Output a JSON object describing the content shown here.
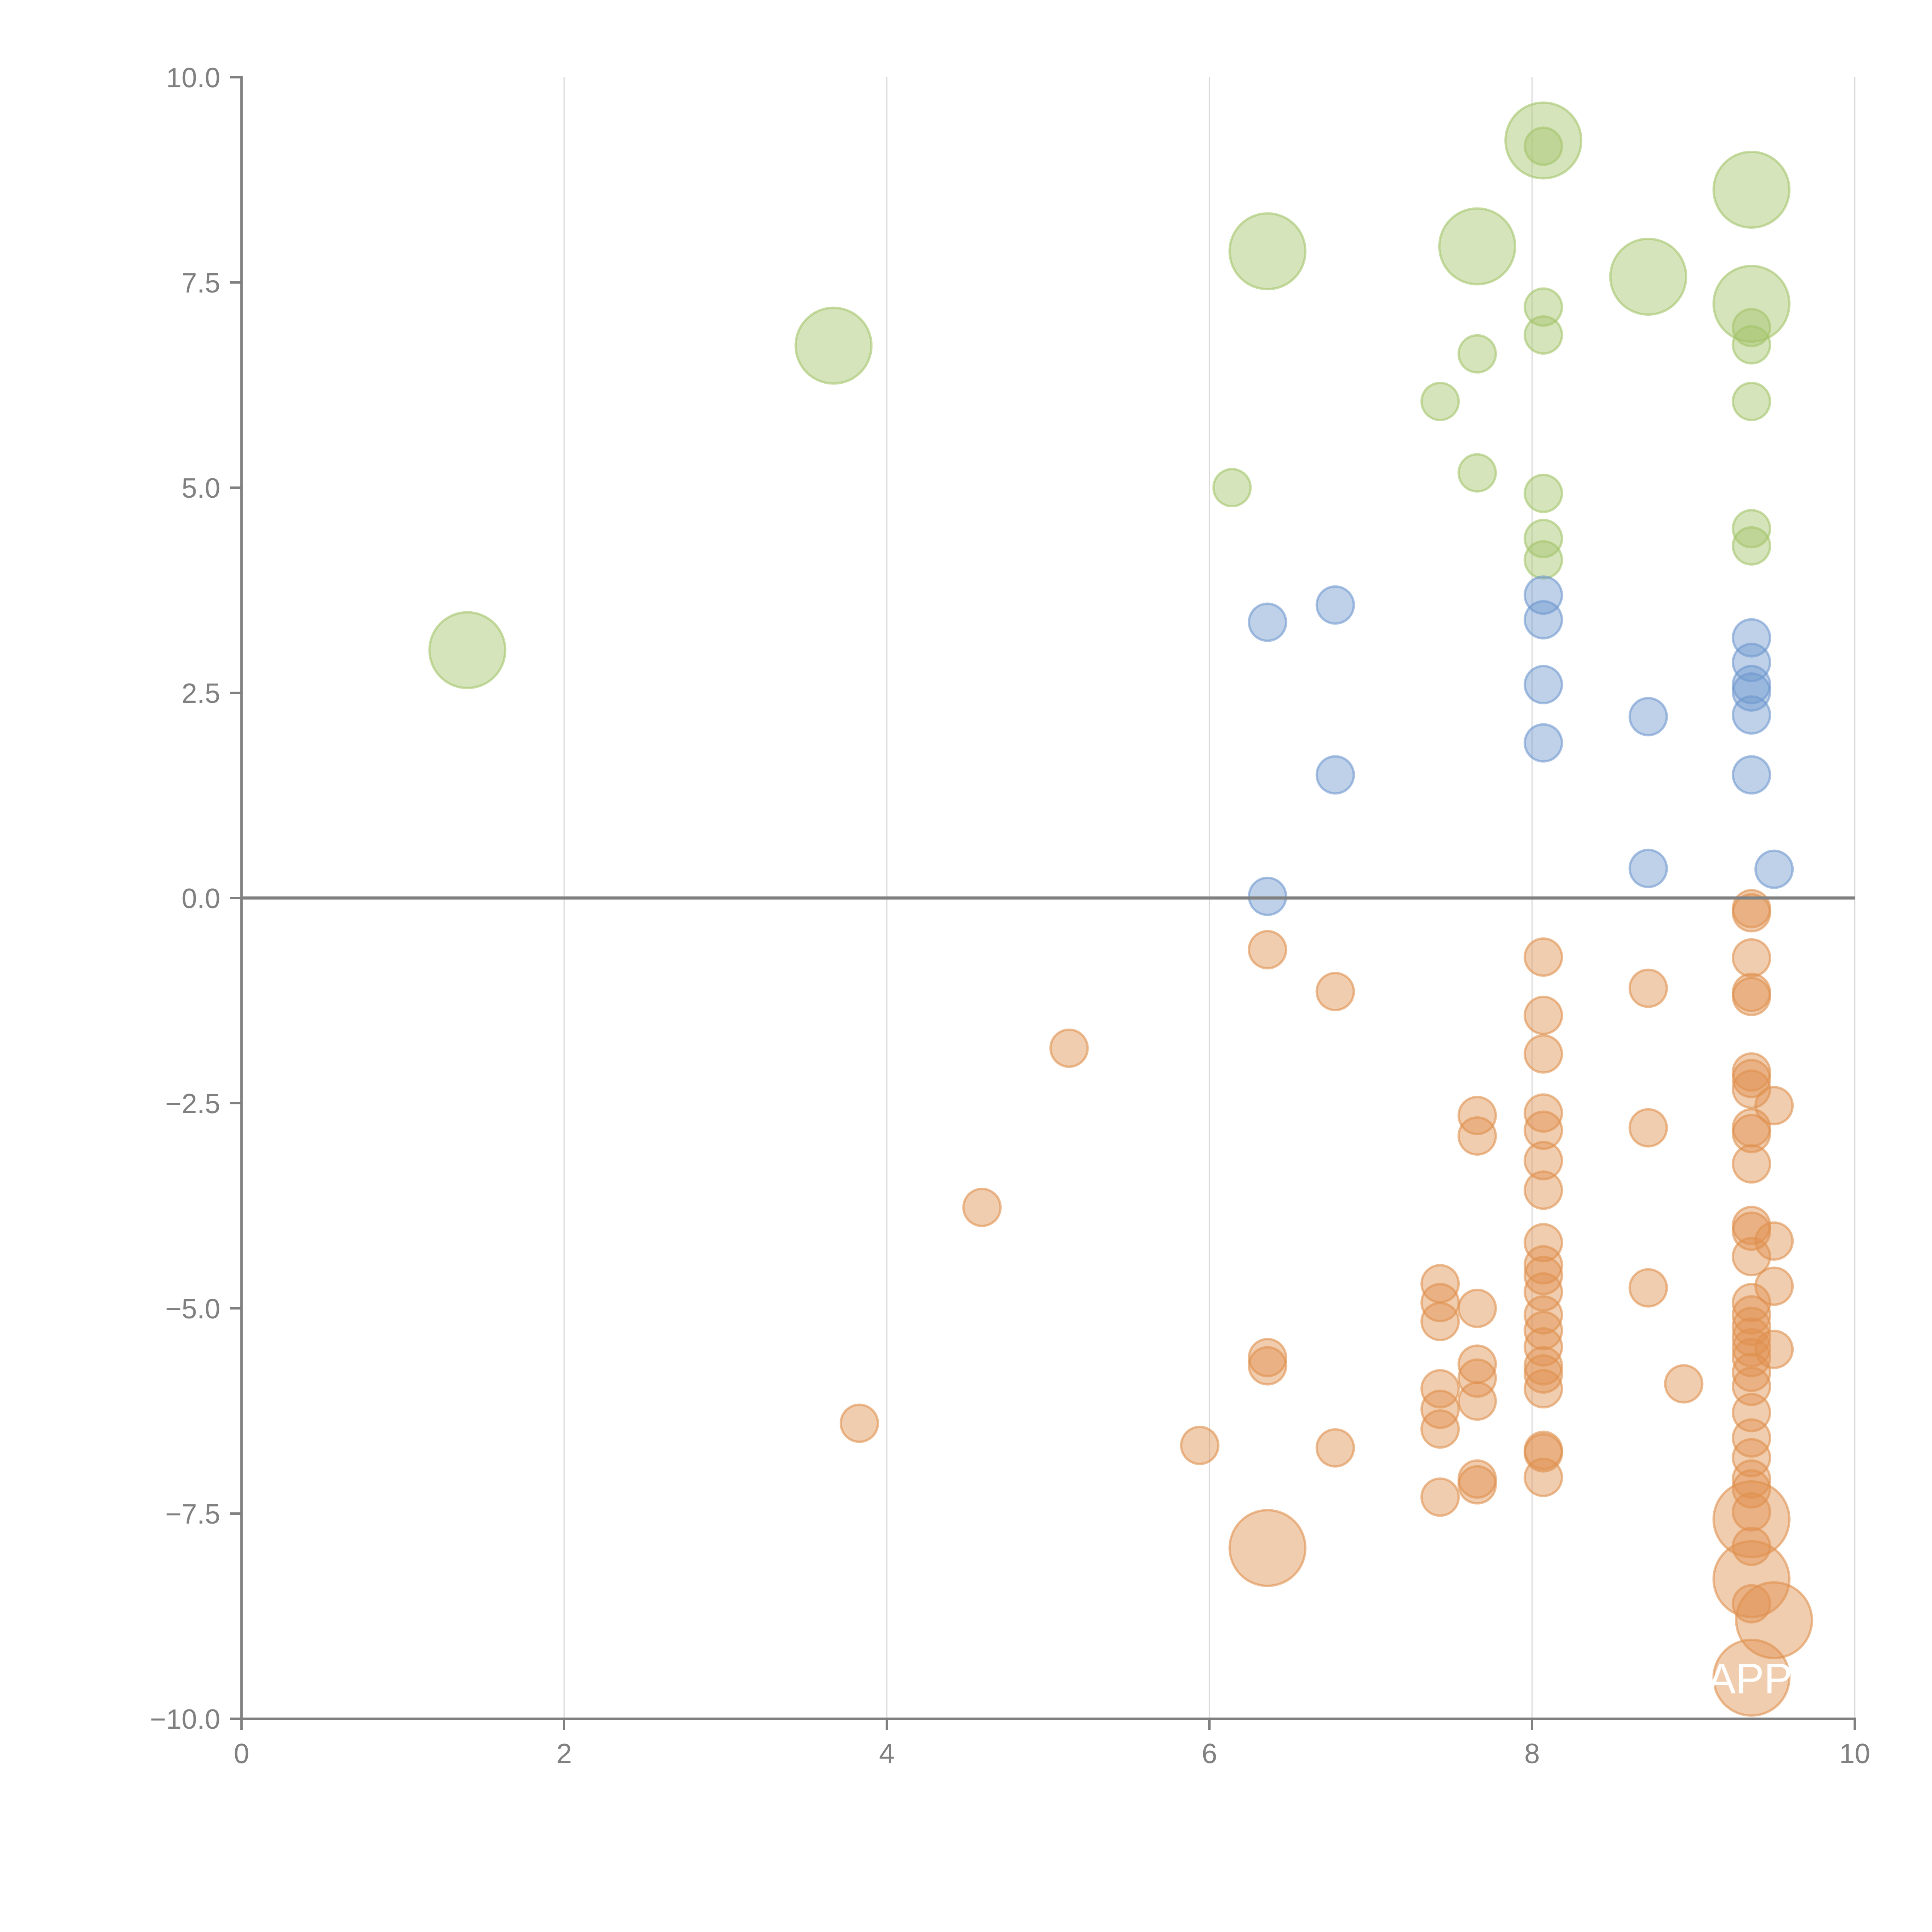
{
  "chart_data": {
    "type": "scatter",
    "title": "",
    "xlabel": "",
    "ylabel": "",
    "xlim": [
      0,
      10
    ],
    "ylim": [
      -10,
      10
    ],
    "x_ticks": [
      "0",
      "2",
      "4",
      "6",
      "8",
      "10"
    ],
    "x_tick_values": [
      0,
      2,
      4,
      6,
      8,
      10
    ],
    "y_ticks": [
      "10.0",
      "7.5",
      "5.0",
      "2.5",
      "0.0",
      "−2.5",
      "−5.0",
      "−7.5",
      "−10.0"
    ],
    "y_tick_values": [
      10,
      7.5,
      5,
      2.5,
      0,
      -2.5,
      -5,
      -7.5,
      -10
    ],
    "grid": "vertical",
    "zero_line": true,
    "annotations": [
      "APP"
    ],
    "series": [
      {
        "name": "green",
        "color": "#a4c46a",
        "points": [
          {
            "x": 1.4,
            "y": 3.02,
            "size": "large"
          },
          {
            "x": 3.67,
            "y": 6.73,
            "size": "large"
          },
          {
            "x": 6.36,
            "y": 7.88,
            "size": "large"
          },
          {
            "x": 7.66,
            "y": 7.94,
            "size": "large"
          },
          {
            "x": 8.07,
            "y": 9.23,
            "size": "large"
          },
          {
            "x": 8.07,
            "y": 9.16,
            "size": "small"
          },
          {
            "x": 8.72,
            "y": 7.57,
            "size": "large"
          },
          {
            "x": 9.36,
            "y": 8.63,
            "size": "large"
          },
          {
            "x": 9.36,
            "y": 7.24,
            "size": "large"
          },
          {
            "x": 9.36,
            "y": 6.95,
            "size": "small"
          },
          {
            "x": 9.36,
            "y": 6.74,
            "size": "small"
          },
          {
            "x": 9.36,
            "y": 6.05,
            "size": "small"
          },
          {
            "x": 9.36,
            "y": 4.5,
            "size": "small"
          },
          {
            "x": 9.36,
            "y": 4.29,
            "size": "small"
          },
          {
            "x": 8.07,
            "y": 7.2,
            "size": "small"
          },
          {
            "x": 8.07,
            "y": 6.86,
            "size": "small"
          },
          {
            "x": 8.07,
            "y": 4.93,
            "size": "small"
          },
          {
            "x": 8.07,
            "y": 4.38,
            "size": "small"
          },
          {
            "x": 8.07,
            "y": 4.12,
            "size": "small"
          },
          {
            "x": 7.66,
            "y": 6.63,
            "size": "small"
          },
          {
            "x": 7.66,
            "y": 5.18,
            "size": "small"
          },
          {
            "x": 7.43,
            "y": 6.05,
            "size": "small"
          },
          {
            "x": 6.14,
            "y": 5.0,
            "size": "small"
          }
        ]
      },
      {
        "name": "blue",
        "color": "#6f98cf",
        "points": [
          {
            "x": 6.36,
            "y": 3.36
          },
          {
            "x": 6.78,
            "y": 3.57
          },
          {
            "x": 6.78,
            "y": 1.5
          },
          {
            "x": 6.36,
            "y": 0.02
          },
          {
            "x": 8.07,
            "y": 3.69
          },
          {
            "x": 8.07,
            "y": 3.39
          },
          {
            "x": 8.07,
            "y": 2.6
          },
          {
            "x": 8.07,
            "y": 1.89
          },
          {
            "x": 8.72,
            "y": 2.21
          },
          {
            "x": 8.72,
            "y": 0.36
          },
          {
            "x": 9.36,
            "y": 3.17
          },
          {
            "x": 9.36,
            "y": 2.87
          },
          {
            "x": 9.36,
            "y": 2.6
          },
          {
            "x": 9.36,
            "y": 2.51
          },
          {
            "x": 9.36,
            "y": 2.23
          },
          {
            "x": 9.36,
            "y": 1.5
          },
          {
            "x": 9.5,
            "y": 0.35
          }
        ]
      },
      {
        "name": "orange",
        "color": "#e0914f",
        "points": [
          {
            "x": 6.36,
            "y": -0.63,
            "size": "small"
          },
          {
            "x": 6.78,
            "y": -1.14,
            "size": "small"
          },
          {
            "x": 5.13,
            "y": -1.83,
            "size": "small"
          },
          {
            "x": 4.59,
            "y": -3.77,
            "size": "small"
          },
          {
            "x": 3.83,
            "y": -6.4,
            "size": "small"
          },
          {
            "x": 5.94,
            "y": -6.67,
            "size": "small"
          },
          {
            "x": 6.36,
            "y": -5.6,
            "size": "small"
          },
          {
            "x": 6.36,
            "y": -5.7,
            "size": "small"
          },
          {
            "x": 6.78,
            "y": -6.7,
            "size": "small"
          },
          {
            "x": 6.36,
            "y": -7.92,
            "size": "large"
          },
          {
            "x": 7.43,
            "y": -4.7,
            "size": "small"
          },
          {
            "x": 7.43,
            "y": -4.93,
            "size": "small"
          },
          {
            "x": 7.43,
            "y": -5.16,
            "size": "small"
          },
          {
            "x": 7.43,
            "y": -5.98,
            "size": "small"
          },
          {
            "x": 7.43,
            "y": -6.23,
            "size": "small"
          },
          {
            "x": 7.43,
            "y": -6.47,
            "size": "small"
          },
          {
            "x": 7.43,
            "y": -7.3,
            "size": "small"
          },
          {
            "x": 7.66,
            "y": -2.65,
            "size": "small"
          },
          {
            "x": 7.66,
            "y": -2.9,
            "size": "small"
          },
          {
            "x": 7.66,
            "y": -5.0,
            "size": "small"
          },
          {
            "x": 7.66,
            "y": -5.68,
            "size": "small"
          },
          {
            "x": 7.66,
            "y": -5.85,
            "size": "small"
          },
          {
            "x": 7.66,
            "y": -6.13,
            "size": "small"
          },
          {
            "x": 7.66,
            "y": -7.08,
            "size": "small"
          },
          {
            "x": 7.66,
            "y": -7.15,
            "size": "small"
          },
          {
            "x": 8.07,
            "y": -0.72,
            "size": "small"
          },
          {
            "x": 8.07,
            "y": -1.43,
            "size": "small"
          },
          {
            "x": 8.07,
            "y": -1.9,
            "size": "small"
          },
          {
            "x": 8.07,
            "y": -2.62,
            "size": "small"
          },
          {
            "x": 8.07,
            "y": -2.83,
            "size": "small"
          },
          {
            "x": 8.07,
            "y": -3.2,
            "size": "small"
          },
          {
            "x": 8.07,
            "y": -3.56,
            "size": "small"
          },
          {
            "x": 8.07,
            "y": -4.2,
            "size": "small"
          },
          {
            "x": 8.07,
            "y": -4.47,
            "size": "small"
          },
          {
            "x": 8.07,
            "y": -4.6,
            "size": "small"
          },
          {
            "x": 8.07,
            "y": -4.8,
            "size": "small"
          },
          {
            "x": 8.07,
            "y": -5.08,
            "size": "small"
          },
          {
            "x": 8.07,
            "y": -5.27,
            "size": "small"
          },
          {
            "x": 8.07,
            "y": -5.47,
            "size": "small"
          },
          {
            "x": 8.07,
            "y": -5.7,
            "size": "small"
          },
          {
            "x": 8.07,
            "y": -5.8,
            "size": "small"
          },
          {
            "x": 8.07,
            "y": -5.98,
            "size": "small"
          },
          {
            "x": 8.07,
            "y": -6.73,
            "size": "small"
          },
          {
            "x": 8.07,
            "y": -6.76,
            "size": "small"
          },
          {
            "x": 8.07,
            "y": -7.06,
            "size": "small"
          },
          {
            "x": 8.72,
            "y": -1.1,
            "size": "small"
          },
          {
            "x": 8.72,
            "y": -2.8,
            "size": "small"
          },
          {
            "x": 8.72,
            "y": -4.75,
            "size": "small"
          },
          {
            "x": 8.94,
            "y": -5.92,
            "size": "small"
          },
          {
            "x": 9.36,
            "y": -0.13,
            "size": "small"
          },
          {
            "x": 9.36,
            "y": -0.18,
            "size": "small"
          },
          {
            "x": 9.36,
            "y": -0.73,
            "size": "small"
          },
          {
            "x": 9.36,
            "y": -1.15,
            "size": "small"
          },
          {
            "x": 9.36,
            "y": -1.2,
            "size": "small"
          },
          {
            "x": 9.36,
            "y": -2.12,
            "size": "small"
          },
          {
            "x": 9.36,
            "y": -2.2,
            "size": "small"
          },
          {
            "x": 9.36,
            "y": -2.33,
            "size": "small"
          },
          {
            "x": 9.36,
            "y": -2.8,
            "size": "small"
          },
          {
            "x": 9.36,
            "y": -2.87,
            "size": "small"
          },
          {
            "x": 9.36,
            "y": -3.24,
            "size": "small"
          },
          {
            "x": 9.36,
            "y": -3.99,
            "size": "small"
          },
          {
            "x": 9.36,
            "y": -4.06,
            "size": "small"
          },
          {
            "x": 9.36,
            "y": -4.37,
            "size": "small"
          },
          {
            "x": 9.36,
            "y": -4.93,
            "size": "small"
          },
          {
            "x": 9.36,
            "y": -5.08,
            "size": "small"
          },
          {
            "x": 9.36,
            "y": -5.22,
            "size": "small"
          },
          {
            "x": 9.36,
            "y": -5.35,
            "size": "small"
          },
          {
            "x": 9.36,
            "y": -5.48,
            "size": "small"
          },
          {
            "x": 9.36,
            "y": -5.6,
            "size": "small"
          },
          {
            "x": 9.36,
            "y": -5.78,
            "size": "small"
          },
          {
            "x": 9.36,
            "y": -5.95,
            "size": "small"
          },
          {
            "x": 9.36,
            "y": -6.27,
            "size": "small"
          },
          {
            "x": 9.36,
            "y": -6.58,
            "size": "small"
          },
          {
            "x": 9.36,
            "y": -6.82,
            "size": "small"
          },
          {
            "x": 9.36,
            "y": -7.08,
            "size": "small"
          },
          {
            "x": 9.36,
            "y": -7.2,
            "size": "small"
          },
          {
            "x": 9.36,
            "y": -7.48,
            "size": "small"
          },
          {
            "x": 9.36,
            "y": -7.9,
            "size": "small"
          },
          {
            "x": 9.36,
            "y": -8.6,
            "size": "small"
          },
          {
            "x": 9.36,
            "y": -7.57,
            "size": "large"
          },
          {
            "x": 9.36,
            "y": -8.3,
            "size": "large"
          },
          {
            "x": 9.5,
            "y": -8.8,
            "size": "large"
          },
          {
            "x": 9.36,
            "y": -9.5,
            "size": "large"
          },
          {
            "x": 9.5,
            "y": -2.53,
            "size": "small"
          },
          {
            "x": 9.5,
            "y": -4.18,
            "size": "small"
          },
          {
            "x": 9.5,
            "y": -4.73,
            "size": "small"
          },
          {
            "x": 9.5,
            "y": -5.5,
            "size": "small"
          }
        ]
      }
    ]
  }
}
